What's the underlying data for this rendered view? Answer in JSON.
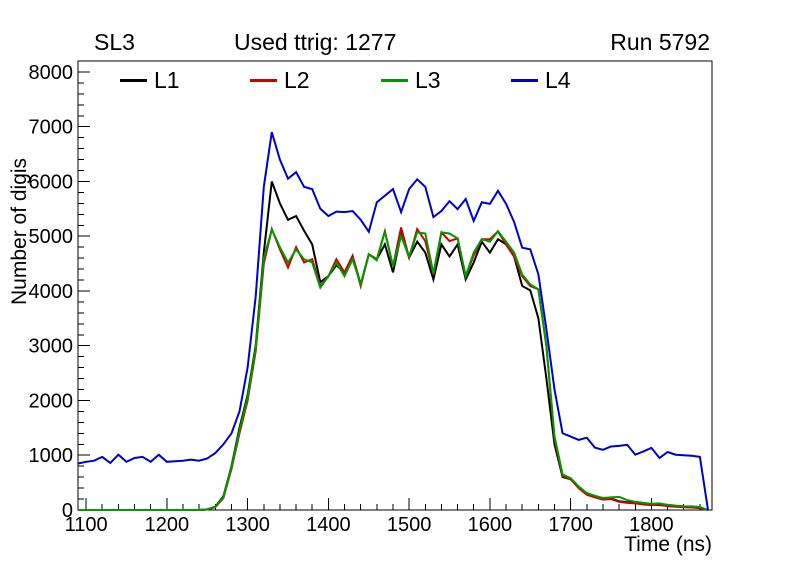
{
  "header": {
    "left_title": "SL3",
    "center_title": "Used ttrig: 1277",
    "right_title": "Run 5792"
  },
  "chart_data": {
    "type": "line",
    "title": "Used ttrig: 1277",
    "xlabel": "Time (ns)",
    "ylabel": "Number of digis",
    "xlim": [
      1090,
      1875
    ],
    "ylim": [
      0,
      8200
    ],
    "x_major_ticks": [
      1100,
      1200,
      1300,
      1400,
      1500,
      1600,
      1700,
      1800
    ],
    "x_minor_step": 20,
    "y_major_ticks": [
      0,
      1000,
      2000,
      3000,
      4000,
      5000,
      6000,
      7000,
      8000
    ],
    "y_minor_step": 200,
    "grid": false,
    "legend_position": "top-inside-horizontal",
    "x": [
      1090,
      1100,
      1110,
      1120,
      1130,
      1140,
      1150,
      1160,
      1170,
      1180,
      1190,
      1200,
      1210,
      1220,
      1230,
      1240,
      1250,
      1260,
      1270,
      1280,
      1290,
      1300,
      1310,
      1320,
      1330,
      1340,
      1350,
      1360,
      1370,
      1380,
      1390,
      1400,
      1410,
      1420,
      1430,
      1440,
      1450,
      1460,
      1470,
      1480,
      1490,
      1500,
      1510,
      1520,
      1530,
      1540,
      1550,
      1560,
      1570,
      1580,
      1590,
      1600,
      1610,
      1620,
      1630,
      1640,
      1650,
      1660,
      1670,
      1680,
      1690,
      1700,
      1710,
      1720,
      1730,
      1740,
      1750,
      1760,
      1770,
      1780,
      1790,
      1800,
      1810,
      1820,
      1830,
      1840,
      1850,
      1860,
      1870
    ],
    "series": [
      {
        "name": "L1",
        "color": "#000000",
        "values": [
          0,
          0,
          0,
          0,
          0,
          0,
          0,
          0,
          0,
          0,
          0,
          0,
          0,
          0,
          0,
          0,
          10,
          60,
          250,
          800,
          1500,
          2100,
          3000,
          4700,
          6000,
          5600,
          5300,
          5370,
          5100,
          4850,
          4160,
          4270,
          4470,
          4340,
          4640,
          4120,
          4670,
          4580,
          4850,
          4340,
          5040,
          4610,
          4900,
          4700,
          4210,
          4850,
          4630,
          4850,
          4210,
          4520,
          4900,
          4700,
          4945,
          4850,
          4630,
          4090,
          4010,
          3500,
          2400,
          1200,
          600,
          560,
          420,
          300,
          250,
          200,
          210,
          160,
          140,
          130,
          110,
          100,
          90,
          80,
          70,
          60,
          50,
          40,
          0
        ]
      },
      {
        "name": "L2",
        "color": "#cc0000",
        "values": [
          0,
          0,
          0,
          0,
          0,
          0,
          0,
          0,
          0,
          0,
          0,
          0,
          0,
          0,
          0,
          0,
          10,
          50,
          220,
          750,
          1400,
          2000,
          2900,
          4500,
          5130,
          4760,
          4430,
          4800,
          4520,
          4580,
          4090,
          4270,
          4580,
          4340,
          4640,
          4090,
          4670,
          4580,
          5090,
          4450,
          5160,
          4610,
          5130,
          4910,
          4300,
          5070,
          4910,
          4960,
          4270,
          4650,
          4945,
          4945,
          5090,
          4850,
          4630,
          4270,
          4090,
          4030,
          2990,
          1300,
          620,
          560,
          400,
          280,
          230,
          190,
          200,
          150,
          130,
          120,
          100,
          90,
          100,
          70,
          60,
          50,
          45,
          35,
          0
        ]
      },
      {
        "name": "L3",
        "color": "#009900",
        "values": [
          0,
          0,
          0,
          0,
          0,
          0,
          0,
          0,
          0,
          0,
          0,
          0,
          0,
          0,
          0,
          0,
          15,
          55,
          240,
          780,
          1450,
          2050,
          2950,
          4600,
          5120,
          4800,
          4520,
          4760,
          4580,
          4520,
          4060,
          4270,
          4520,
          4270,
          4580,
          4120,
          4670,
          4560,
          5090,
          4450,
          5000,
          4630,
          5070,
          5050,
          4320,
          5070,
          5050,
          4960,
          4270,
          4700,
          4945,
          4900,
          5090,
          4900,
          4700,
          4300,
          4120,
          4030,
          3000,
          1350,
          650,
          580,
          430,
          310,
          260,
          220,
          230,
          240,
          180,
          150,
          130,
          115,
          120,
          95,
          80,
          70,
          65,
          55,
          0
        ]
      },
      {
        "name": "L4",
        "color": "#0000cc",
        "values": [
          850,
          880,
          900,
          970,
          860,
          1010,
          880,
          950,
          970,
          880,
          1010,
          880,
          890,
          900,
          920,
          900,
          940,
          1040,
          1200,
          1400,
          1800,
          2600,
          3900,
          5900,
          6900,
          6400,
          6050,
          6170,
          5900,
          5860,
          5500,
          5370,
          5450,
          5440,
          5460,
          5300,
          5080,
          5620,
          5740,
          5860,
          5440,
          5860,
          6040,
          5900,
          5350,
          5460,
          5640,
          5495,
          5680,
          5280,
          5620,
          5590,
          5830,
          5590,
          5260,
          4790,
          4760,
          4300,
          3300,
          2200,
          1400,
          1340,
          1280,
          1320,
          1140,
          1100,
          1160,
          1170,
          1190,
          1010,
          1070,
          1135,
          950,
          1060,
          1010,
          1000,
          990,
          970,
          0
        ]
      }
    ]
  }
}
